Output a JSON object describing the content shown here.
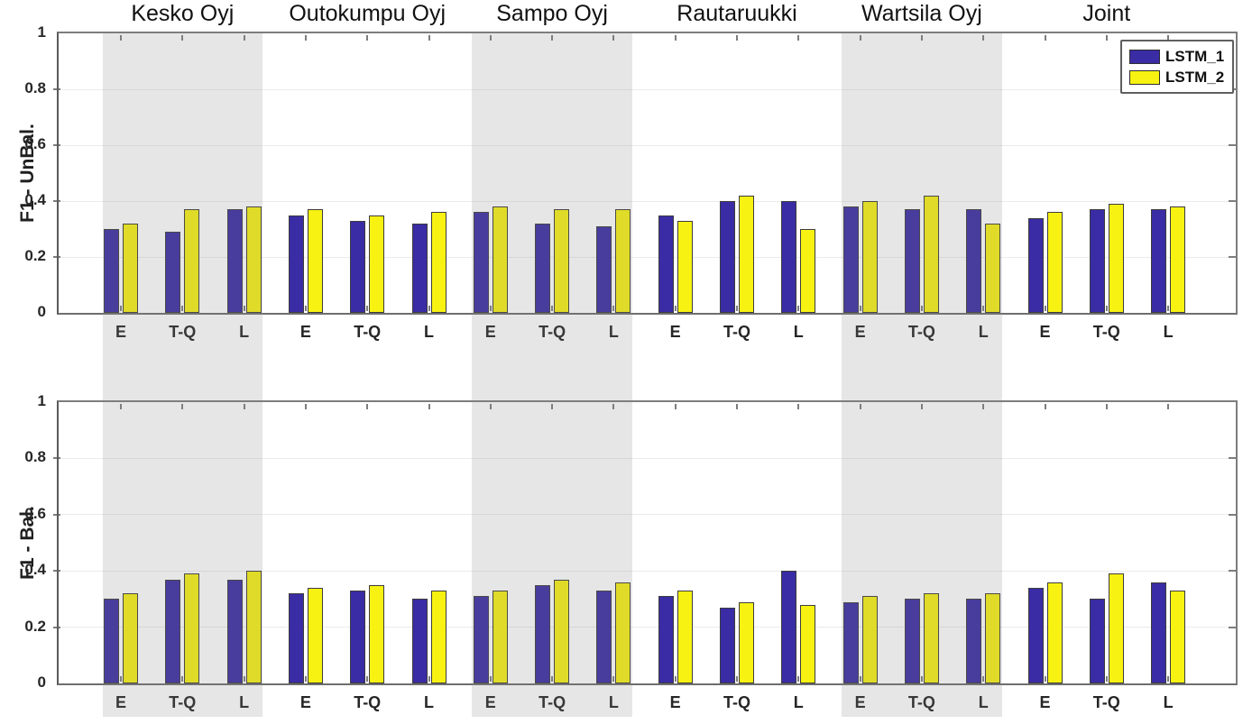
{
  "figure": {
    "colors": {
      "lstm1": "#3A2CA4",
      "lstm2": "#F7F212",
      "bar_edge": "#3D3D3D",
      "band_overlay": "rgba(128,128,128,0.20)",
      "gridline": "#EBEBEB",
      "axis": "#7D7D7D",
      "text": "#262626"
    },
    "legend": {
      "entries": [
        "LSTM_1",
        "LSTM_2"
      ]
    },
    "column_titles": [
      "Kesko Oyj",
      "Outokumpu Oyj",
      "Sampo Oyj",
      "Rautaruukki",
      "Wartsila Oyj",
      "Joint"
    ]
  },
  "chart_data": [
    {
      "type": "bar",
      "panel": "top",
      "ylabel": "F1 - UnBal.",
      "ylim": [
        0,
        1
      ],
      "ytick_labels": [
        "0",
        "0.2",
        "0.4",
        "0.6",
        "0.8",
        "1"
      ],
      "ytick_values": [
        0,
        0.2,
        0.4,
        0.6,
        0.8,
        1
      ],
      "grid": "horizontal",
      "legend_position": "top-right",
      "series_names": [
        "LSTM_1",
        "LSTM_2"
      ],
      "groups": [
        {
          "title": "Kesko Oyj",
          "shaded": true,
          "categories": [
            "E",
            "T-Q",
            "L"
          ],
          "lstm1": [
            0.3,
            0.29,
            0.37
          ],
          "lstm2": [
            0.32,
            0.37,
            0.38
          ]
        },
        {
          "title": "Outokumpu Oyj",
          "shaded": false,
          "categories": [
            "E",
            "T-Q",
            "L"
          ],
          "lstm1": [
            0.35,
            0.33,
            0.32
          ],
          "lstm2": [
            0.37,
            0.35,
            0.36
          ]
        },
        {
          "title": "Sampo Oyj",
          "shaded": true,
          "categories": [
            "E",
            "T-Q",
            "L"
          ],
          "lstm1": [
            0.36,
            0.32,
            0.31
          ],
          "lstm2": [
            0.38,
            0.37,
            0.37
          ]
        },
        {
          "title": "Rautaruukki",
          "shaded": false,
          "categories": [
            "E",
            "T-Q",
            "L"
          ],
          "lstm1": [
            0.35,
            0.4,
            0.4
          ],
          "lstm2": [
            0.33,
            0.42,
            0.3
          ]
        },
        {
          "title": "Wartsila Oyj",
          "shaded": true,
          "categories": [
            "E",
            "T-Q",
            "L"
          ],
          "lstm1": [
            0.38,
            0.37,
            0.37
          ],
          "lstm2": [
            0.4,
            0.42,
            0.32
          ]
        },
        {
          "title": "Joint",
          "shaded": false,
          "categories": [
            "E",
            "T-Q",
            "L"
          ],
          "lstm1": [
            0.34,
            0.37,
            0.37
          ],
          "lstm2": [
            0.36,
            0.39,
            0.38
          ]
        }
      ]
    },
    {
      "type": "bar",
      "panel": "bottom",
      "ylabel": "F1 - Bal.",
      "ylim": [
        0,
        1
      ],
      "ytick_labels": [
        "0",
        "0.2",
        "0.4",
        "0.6",
        "0.8",
        "1"
      ],
      "ytick_values": [
        0,
        0.2,
        0.4,
        0.6,
        0.8,
        1
      ],
      "grid": "horizontal",
      "legend_position": "none",
      "series_names": [
        "LSTM_1",
        "LSTM_2"
      ],
      "groups": [
        {
          "title": "Kesko Oyj",
          "shaded": true,
          "categories": [
            "E",
            "T-Q",
            "L"
          ],
          "lstm1": [
            0.3,
            0.37,
            0.37
          ],
          "lstm2": [
            0.32,
            0.39,
            0.4
          ]
        },
        {
          "title": "Outokumpu Oyj",
          "shaded": false,
          "categories": [
            "E",
            "T-Q",
            "L"
          ],
          "lstm1": [
            0.32,
            0.33,
            0.3
          ],
          "lstm2": [
            0.34,
            0.35,
            0.33
          ]
        },
        {
          "title": "Sampo Oyj",
          "shaded": true,
          "categories": [
            "E",
            "T-Q",
            "L"
          ],
          "lstm1": [
            0.31,
            0.35,
            0.33
          ],
          "lstm2": [
            0.33,
            0.37,
            0.36
          ]
        },
        {
          "title": "Rautaruukki",
          "shaded": false,
          "categories": [
            "E",
            "T-Q",
            "L"
          ],
          "lstm1": [
            0.31,
            0.27,
            0.4
          ],
          "lstm2": [
            0.33,
            0.29,
            0.28
          ]
        },
        {
          "title": "Wartsila Oyj",
          "shaded": true,
          "categories": [
            "E",
            "T-Q",
            "L"
          ],
          "lstm1": [
            0.29,
            0.3,
            0.3
          ],
          "lstm2": [
            0.31,
            0.32,
            0.32
          ]
        },
        {
          "title": "Joint",
          "shaded": false,
          "categories": [
            "E",
            "T-Q",
            "L"
          ],
          "lstm1": [
            0.34,
            0.3,
            0.36
          ],
          "lstm2": [
            0.36,
            0.39,
            0.33
          ]
        }
      ]
    }
  ]
}
